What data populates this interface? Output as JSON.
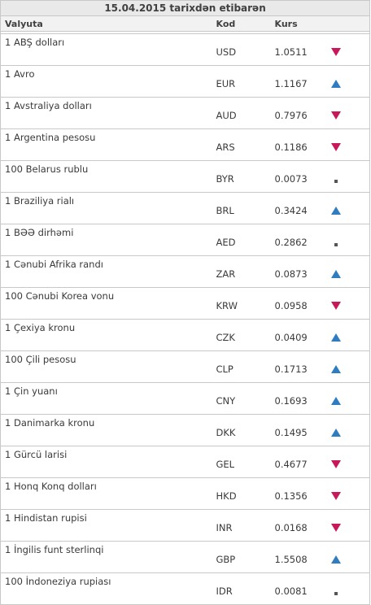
{
  "colors": {
    "up": "#2f7dc0",
    "down": "#c8185c",
    "flat": "#555555"
  },
  "caption": "15.04.2015 tarixdən etibarən",
  "headers": {
    "currency": "Valyuta",
    "code": "Kod",
    "rate": "Kurs"
  },
  "rows": [
    {
      "name": "1 ABŞ dolları",
      "code": "USD",
      "rate": "1.0511",
      "trend": "down"
    },
    {
      "name": "1 Avro",
      "code": "EUR",
      "rate": "1.1167",
      "trend": "up"
    },
    {
      "name": "1 Avstraliya dolları",
      "code": "AUD",
      "rate": "0.7976",
      "trend": "down"
    },
    {
      "name": "1 Argentina pesosu",
      "code": "ARS",
      "rate": "0.1186",
      "trend": "down"
    },
    {
      "name": "100 Belarus rublu",
      "code": "BYR",
      "rate": "0.0073",
      "trend": "flat"
    },
    {
      "name": "1 Braziliya rialı",
      "code": "BRL",
      "rate": "0.3424",
      "trend": "up"
    },
    {
      "name": "1 BƏƏ dirhəmi",
      "code": "AED",
      "rate": "0.2862",
      "trend": "flat"
    },
    {
      "name": "1 Cənubi Afrika randı",
      "code": "ZAR",
      "rate": "0.0873",
      "trend": "up"
    },
    {
      "name": "100 Cənubi Korea vonu",
      "code": "KRW",
      "rate": "0.0958",
      "trend": "down"
    },
    {
      "name": "1 Çexiya kronu",
      "code": "CZK",
      "rate": "0.0409",
      "trend": "up"
    },
    {
      "name": "100 Çili pesosu",
      "code": "CLP",
      "rate": "0.1713",
      "trend": "up"
    },
    {
      "name": "1 Çin yuanı",
      "code": "CNY",
      "rate": "0.1693",
      "trend": "up"
    },
    {
      "name": "1 Danimarka kronu",
      "code": "DKK",
      "rate": "0.1495",
      "trend": "up"
    },
    {
      "name": "1 Gürcü larisi",
      "code": "GEL",
      "rate": "0.4677",
      "trend": "down"
    },
    {
      "name": "1 Honq Konq dolları",
      "code": "HKD",
      "rate": "0.1356",
      "trend": "down"
    },
    {
      "name": "1 Hindistan rupisi",
      "code": "INR",
      "rate": "0.0168",
      "trend": "down"
    },
    {
      "name": "1 İngilis funt sterlinqi",
      "code": "GBP",
      "rate": "1.5508",
      "trend": "up"
    },
    {
      "name": "100 İndoneziya rupiası",
      "code": "IDR",
      "rate": "0.0081",
      "trend": "flat"
    }
  ]
}
